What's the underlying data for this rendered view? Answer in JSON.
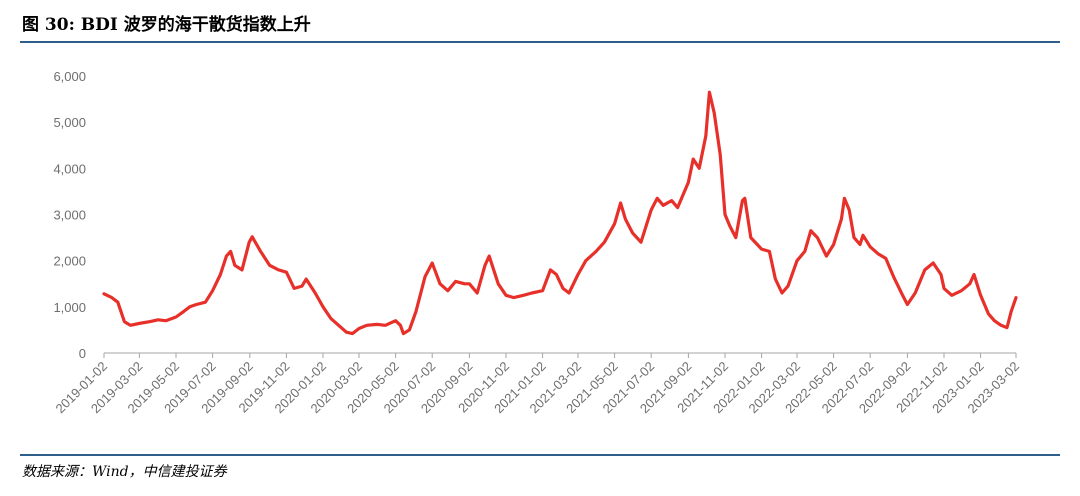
{
  "header": {
    "title": "图 30: BDI 波罗的海干散货指数上升"
  },
  "footer": {
    "source": "数据来源：Wind，中信建投证券"
  },
  "chart_data": {
    "type": "line",
    "title": "图 30: BDI 波罗的海干散货指数上升",
    "xlabel": "",
    "ylabel": "",
    "ylim": [
      0,
      6000
    ],
    "yticks": [
      0,
      1000,
      2000,
      3000,
      4000,
      5000,
      6000
    ],
    "ytick_labels": [
      "0",
      "1,000",
      "2,000",
      "3,000",
      "4,000",
      "5,000",
      "6,000"
    ],
    "xlim": [
      "2019-01-02",
      "2023-03-02"
    ],
    "xtick_labels": [
      "2019-01-02",
      "2019-03-02",
      "2019-05-02",
      "2019-07-02",
      "2019-09-02",
      "2019-11-02",
      "2020-01-02",
      "2020-03-02",
      "2020-05-02",
      "2020-07-02",
      "2020-09-02",
      "2020-11-02",
      "2021-01-02",
      "2021-03-02",
      "2021-05-02",
      "2021-07-02",
      "2021-09-02",
      "2021-11-02",
      "2022-01-02",
      "2022-03-02",
      "2022-05-02",
      "2022-07-02",
      "2022-09-02",
      "2022-11-02",
      "2023-01-02",
      "2023-03-02"
    ],
    "grid": false,
    "legend": "none",
    "series": [
      {
        "color": "#e8302a",
        "points": [
          [
            "2019-01-02",
            1282
          ],
          [
            "2019-01-15",
            1200
          ],
          [
            "2019-01-25",
            1100
          ],
          [
            "2019-02-05",
            680
          ],
          [
            "2019-02-15",
            600
          ],
          [
            "2019-03-01",
            640
          ],
          [
            "2019-03-20",
            680
          ],
          [
            "2019-04-02",
            720
          ],
          [
            "2019-04-15",
            700
          ],
          [
            "2019-05-02",
            780
          ],
          [
            "2019-05-15",
            900
          ],
          [
            "2019-05-25",
            1000
          ],
          [
            "2019-06-05",
            1050
          ],
          [
            "2019-06-20",
            1100
          ],
          [
            "2019-07-02",
            1350
          ],
          [
            "2019-07-15",
            1700
          ],
          [
            "2019-07-25",
            2100
          ],
          [
            "2019-08-01",
            2200
          ],
          [
            "2019-08-08",
            1900
          ],
          [
            "2019-08-20",
            1800
          ],
          [
            "2019-09-01",
            2400
          ],
          [
            "2019-09-06",
            2518
          ],
          [
            "2019-09-20",
            2200
          ],
          [
            "2019-10-05",
            1900
          ],
          [
            "2019-10-20",
            1800
          ],
          [
            "2019-11-02",
            1750
          ],
          [
            "2019-11-15",
            1400
          ],
          [
            "2019-11-28",
            1450
          ],
          [
            "2019-12-05",
            1600
          ],
          [
            "2019-12-20",
            1300
          ],
          [
            "2020-01-02",
            1000
          ],
          [
            "2020-01-15",
            750
          ],
          [
            "2020-01-28",
            600
          ],
          [
            "2020-02-10",
            450
          ],
          [
            "2020-02-20",
            420
          ],
          [
            "2020-03-02",
            530
          ],
          [
            "2020-03-15",
            600
          ],
          [
            "2020-04-01",
            620
          ],
          [
            "2020-04-15",
            600
          ],
          [
            "2020-05-02",
            700
          ],
          [
            "2020-05-10",
            600
          ],
          [
            "2020-05-15",
            420
          ],
          [
            "2020-05-25",
            500
          ],
          [
            "2020-06-05",
            900
          ],
          [
            "2020-06-20",
            1650
          ],
          [
            "2020-07-02",
            1950
          ],
          [
            "2020-07-15",
            1500
          ],
          [
            "2020-07-28",
            1350
          ],
          [
            "2020-08-10",
            1550
          ],
          [
            "2020-08-25",
            1500
          ],
          [
            "2020-09-02",
            1500
          ],
          [
            "2020-09-15",
            1300
          ],
          [
            "2020-09-28",
            1900
          ],
          [
            "2020-10-05",
            2100
          ],
          [
            "2020-10-20",
            1500
          ],
          [
            "2020-11-02",
            1250
          ],
          [
            "2020-11-15",
            1200
          ],
          [
            "2020-12-01",
            1250
          ],
          [
            "2020-12-15",
            1300
          ],
          [
            "2021-01-02",
            1350
          ],
          [
            "2021-01-15",
            1800
          ],
          [
            "2021-01-25",
            1700
          ],
          [
            "2021-02-05",
            1400
          ],
          [
            "2021-02-15",
            1300
          ],
          [
            "2021-03-02",
            1700
          ],
          [
            "2021-03-15",
            2000
          ],
          [
            "2021-04-01",
            2200
          ],
          [
            "2021-04-15",
            2400
          ],
          [
            "2021-05-02",
            2800
          ],
          [
            "2021-05-12",
            3250
          ],
          [
            "2021-05-20",
            2900
          ],
          [
            "2021-06-01",
            2600
          ],
          [
            "2021-06-15",
            2400
          ],
          [
            "2021-07-02",
            3100
          ],
          [
            "2021-07-12",
            3350
          ],
          [
            "2021-07-22",
            3200
          ],
          [
            "2021-08-05",
            3300
          ],
          [
            "2021-08-15",
            3150
          ],
          [
            "2021-09-02",
            3700
          ],
          [
            "2021-09-10",
            4200
          ],
          [
            "2021-09-20",
            4000
          ],
          [
            "2021-10-01",
            4700
          ],
          [
            "2021-10-07",
            5650
          ],
          [
            "2021-10-15",
            5200
          ],
          [
            "2021-10-25",
            4300
          ],
          [
            "2021-11-02",
            3000
          ],
          [
            "2021-11-10",
            2750
          ],
          [
            "2021-11-20",
            2500
          ],
          [
            "2021-12-01",
            3300
          ],
          [
            "2021-12-05",
            3350
          ],
          [
            "2021-12-15",
            2500
          ],
          [
            "2022-01-02",
            2250
          ],
          [
            "2022-01-15",
            2200
          ],
          [
            "2022-01-25",
            1600
          ],
          [
            "2022-02-05",
            1300
          ],
          [
            "2022-02-15",
            1450
          ],
          [
            "2022-03-02",
            2000
          ],
          [
            "2022-03-15",
            2200
          ],
          [
            "2022-03-25",
            2650
          ],
          [
            "2022-04-05",
            2500
          ],
          [
            "2022-04-20",
            2100
          ],
          [
            "2022-05-02",
            2350
          ],
          [
            "2022-05-15",
            2900
          ],
          [
            "2022-05-20",
            3350
          ],
          [
            "2022-05-28",
            3100
          ],
          [
            "2022-06-05",
            2500
          ],
          [
            "2022-06-15",
            2350
          ],
          [
            "2022-06-20",
            2550
          ],
          [
            "2022-07-02",
            2300
          ],
          [
            "2022-07-15",
            2150
          ],
          [
            "2022-07-28",
            2050
          ],
          [
            "2022-08-10",
            1650
          ],
          [
            "2022-08-25",
            1250
          ],
          [
            "2022-09-02",
            1050
          ],
          [
            "2022-09-15",
            1300
          ],
          [
            "2022-10-01",
            1800
          ],
          [
            "2022-10-15",
            1950
          ],
          [
            "2022-10-28",
            1700
          ],
          [
            "2022-11-02",
            1400
          ],
          [
            "2022-11-15",
            1250
          ],
          [
            "2022-12-01",
            1350
          ],
          [
            "2022-12-15",
            1500
          ],
          [
            "2022-12-22",
            1700
          ],
          [
            "2023-01-02",
            1250
          ],
          [
            "2023-01-15",
            850
          ],
          [
            "2023-01-25",
            700
          ],
          [
            "2023-02-05",
            600
          ],
          [
            "2023-02-15",
            550
          ],
          [
            "2023-02-22",
            900
          ],
          [
            "2023-03-02",
            1200
          ]
        ]
      }
    ]
  }
}
